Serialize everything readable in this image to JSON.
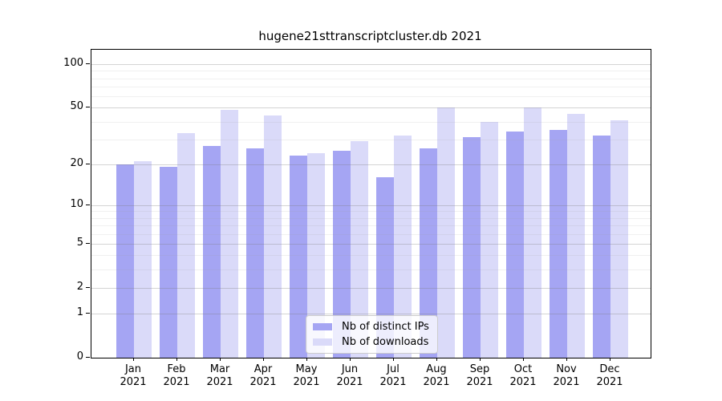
{
  "title": "hugene21sttranscriptcluster.db 2021",
  "chart_data": {
    "type": "bar",
    "title": "hugene21sttranscriptcluster.db 2021",
    "scale": "log10(value+1)",
    "grid": true,
    "legend_position": "lower center",
    "year": "2021",
    "categories": [
      "Jan",
      "Feb",
      "Mar",
      "Apr",
      "May",
      "Jun",
      "Jul",
      "Aug",
      "Sep",
      "Oct",
      "Nov",
      "Dec"
    ],
    "series": [
      {
        "key": "distinct-ips",
        "name": "Nb of distinct IPs",
        "color": "#a5a5f3",
        "values": [
          20,
          19,
          27,
          26,
          23,
          25,
          16,
          26,
          31,
          34,
          35,
          32
        ]
      },
      {
        "key": "downloads",
        "name": "Nb of downloads",
        "color": "#dadaf9",
        "values": [
          21,
          33,
          48,
          44,
          24,
          29,
          32,
          50,
          40,
          50,
          45,
          41
        ]
      }
    ],
    "yticks": [
      0,
      1,
      2,
      5,
      10,
      20,
      50,
      100
    ],
    "minor_gridlines": [
      3,
      4,
      6,
      7,
      8,
      9,
      30,
      40,
      60,
      70,
      80,
      90
    ],
    "ylim": [
      0,
      126
    ],
    "xlabel": "",
    "ylabel": ""
  }
}
